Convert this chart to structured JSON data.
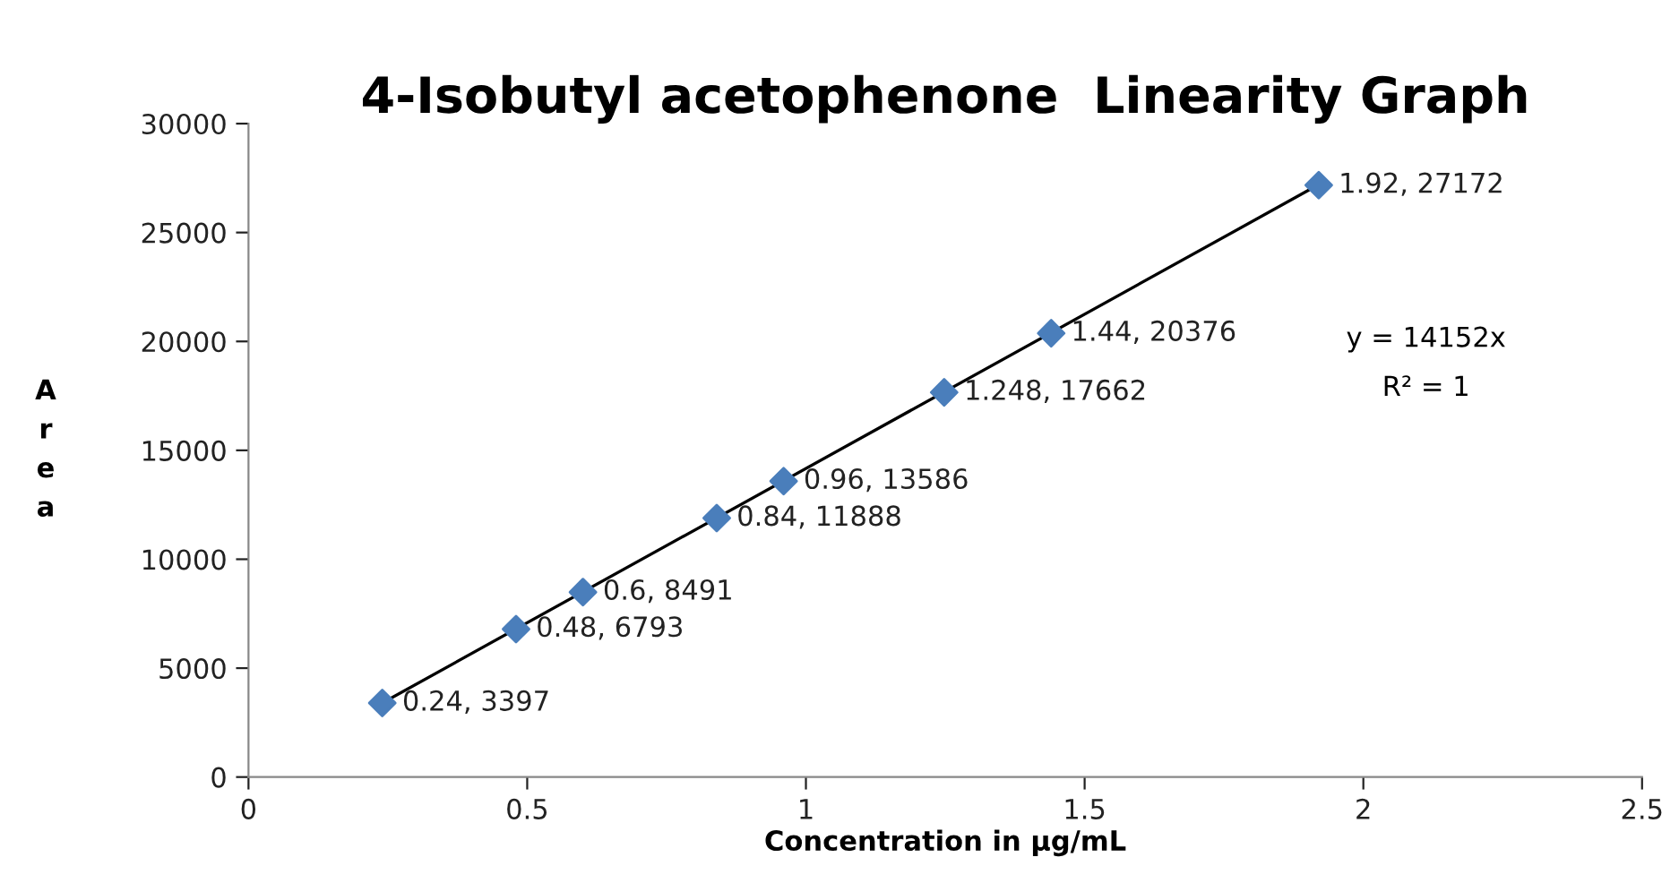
{
  "chart_data": {
    "type": "scatter",
    "title": "4-Isobutyl acetophenone  Linearity Graph",
    "xlabel": "Concentration in µg/mL",
    "ylabel": "Area",
    "xlim": [
      0,
      2.5
    ],
    "xticks": [
      0,
      0.5,
      1,
      1.5,
      2,
      2.5
    ],
    "ylim": [
      0,
      30000
    ],
    "yticks": [
      0,
      5000,
      10000,
      15000,
      20000,
      25000,
      30000
    ],
    "grid": false,
    "legend": false,
    "series": [
      {
        "color": "#4a7ebb",
        "marker": "diamond",
        "x": [
          0.24,
          0.48,
          0.6,
          0.84,
          0.96,
          1.248,
          1.44,
          1.92
        ],
        "values": [
          3397,
          6793,
          8491,
          11888,
          13586,
          17662,
          20376,
          27172
        ],
        "value_labels": [
          "0.24, 3397",
          "0.48, 6793",
          "0.6, 8491",
          "0.84, 11888",
          "0.96, 13586",
          "1.248, 17662",
          "1.44, 20376",
          "1.92, 27172"
        ]
      },
      {
        "type": "line",
        "color": "#000000",
        "x": [
          0.24,
          1.92
        ],
        "values": [
          3400,
          27200
        ],
        "line_style": "solid"
      }
    ],
    "annotations": [
      "y = 14152x",
      "R² = 1"
    ]
  }
}
